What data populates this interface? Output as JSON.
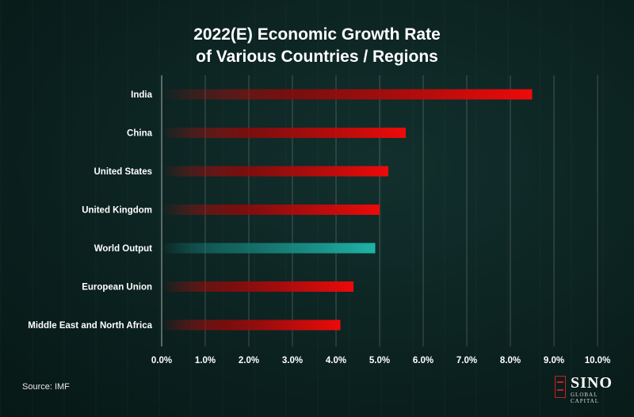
{
  "header": {
    "title_line1": "2022(E) Economic Growth Rate",
    "title_line2": "of Various Countries / Regions"
  },
  "footer": {
    "source": "Source: IMF",
    "logo_name": "SINO",
    "logo_sub": "GLOBAL CAPITAL"
  },
  "colors": {
    "bar_default": "#e00808",
    "bar_highlight": "#1aa39a",
    "grid": "#ffffff"
  },
  "chart_data": {
    "type": "bar",
    "orientation": "horizontal",
    "title": "2022(E) Economic Growth Rate of Various Countries / Regions",
    "xlabel": "",
    "ylabel": "",
    "xlim": [
      0,
      10
    ],
    "x_ticks": [
      "0.0%",
      "1.0%",
      "2.0%",
      "3.0%",
      "4.0%",
      "5.0%",
      "6.0%",
      "7.0%",
      "8.0%",
      "9.0%",
      "10.0%"
    ],
    "grid": "vertical",
    "categories": [
      "India",
      "China",
      "United States",
      "United Kingdom",
      "World Output",
      "European Union",
      "Middle East and North Africa"
    ],
    "values": [
      8.5,
      5.6,
      5.2,
      5.0,
      4.9,
      4.4,
      4.1
    ],
    "highlight": "World Output",
    "unit": "%"
  }
}
